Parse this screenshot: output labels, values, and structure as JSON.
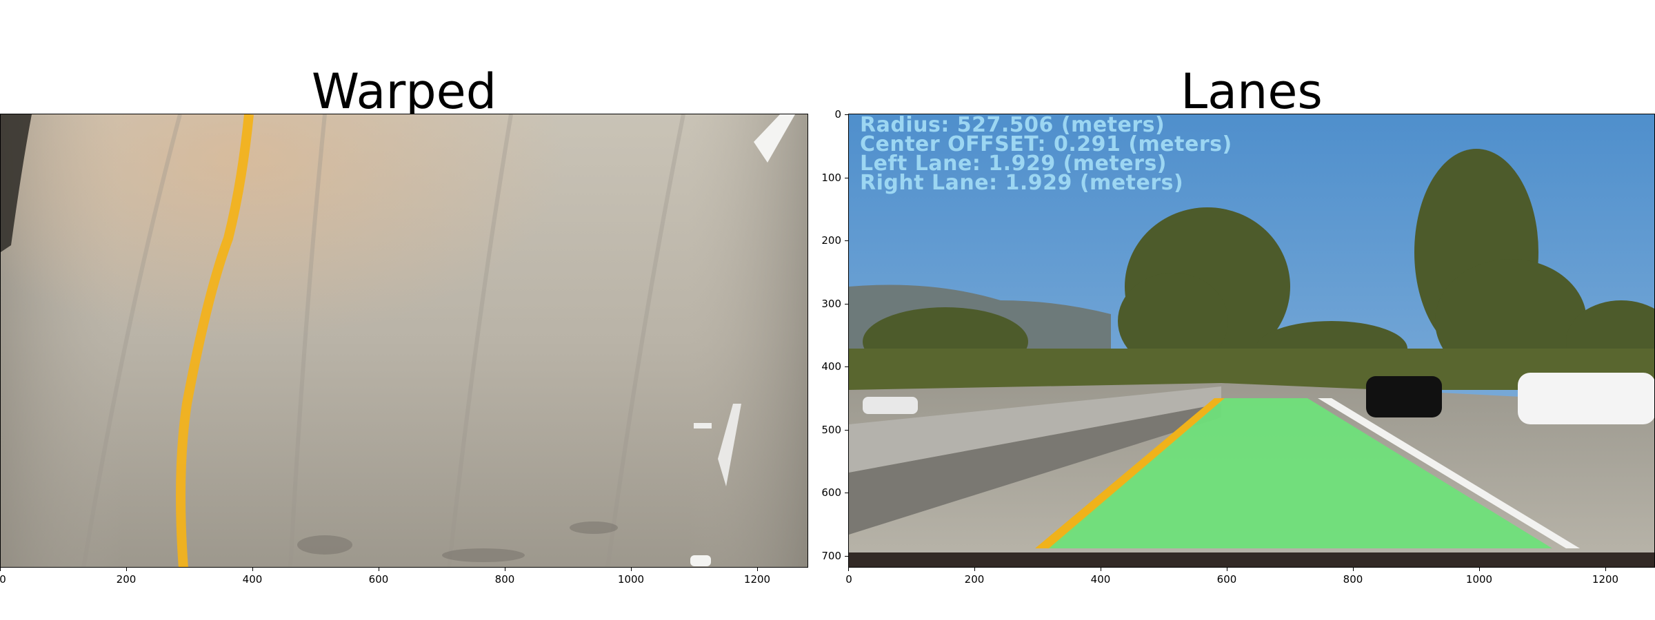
{
  "left_panel": {
    "title": "Warped",
    "x_ticks": [
      "0",
      "200",
      "400",
      "600",
      "800",
      "1000",
      "1200"
    ]
  },
  "right_panel": {
    "title": "Lanes",
    "x_ticks": [
      "0",
      "200",
      "400",
      "600",
      "800",
      "1000",
      "1200"
    ],
    "y_ticks": [
      "0",
      "100",
      "200",
      "300",
      "400",
      "500",
      "600",
      "700"
    ],
    "overlay": {
      "radius": "Radius: 527.506 (meters)",
      "center_offset": "Center OFFSET: 0.291 (meters)",
      "left_lane": "Left Lane: 1.929 (meters)",
      "right_lane": "Right Lane: 1.929 (meters)"
    }
  },
  "colors": {
    "sky": "#5e98cf",
    "road": "#a7a39a",
    "lane_fill": "#6fe07a",
    "yellow_line": "#f0b21a",
    "overlay_text": "#9cd6f2"
  }
}
